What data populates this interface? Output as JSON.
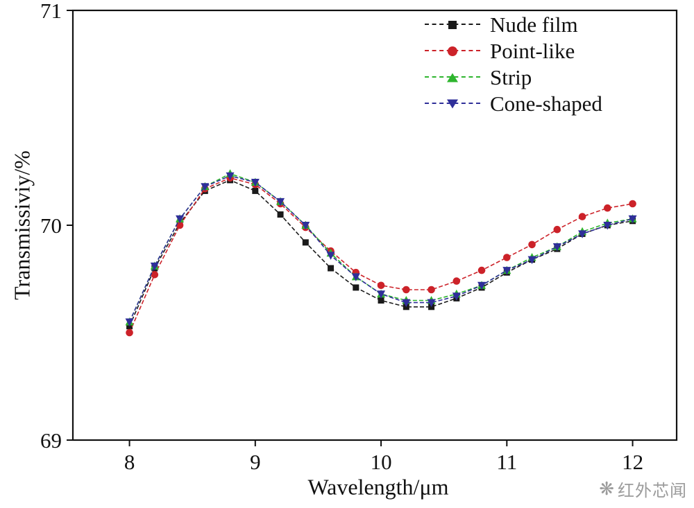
{
  "watermark": {
    "text": "红外芯闻",
    "icon": "snowflake-logo",
    "color": "#9b9b9b"
  },
  "chart_data": {
    "type": "line",
    "title": "",
    "xlabel": "Wavelength/μm",
    "ylabel": "Transmissiviy/%",
    "xlim": [
      7.55,
      12.35
    ],
    "ylim": [
      69,
      71
    ],
    "xticks": [
      8,
      9,
      10,
      11,
      12
    ],
    "yticks": [
      69,
      70,
      71
    ],
    "grid": false,
    "legend_position": "top-right-inside",
    "axis_color": "#111111",
    "x": [
      8.0,
      8.2,
      8.4,
      8.6,
      8.8,
      9.0,
      9.2,
      9.4,
      9.6,
      9.8,
      10.0,
      10.2,
      10.4,
      10.6,
      10.8,
      11.0,
      11.2,
      11.4,
      11.6,
      11.8,
      12.0
    ],
    "series": [
      {
        "name": "Nude film",
        "color": "#1a1a1a",
        "marker": "square",
        "values": [
          69.53,
          69.8,
          70.01,
          70.16,
          70.21,
          70.16,
          70.05,
          69.92,
          69.8,
          69.71,
          69.65,
          69.62,
          69.62,
          69.66,
          69.71,
          69.78,
          69.84,
          69.89,
          69.96,
          70.0,
          70.02
        ]
      },
      {
        "name": "Point-like",
        "color": "#cc2229",
        "marker": "circle",
        "values": [
          69.5,
          69.77,
          70.0,
          70.17,
          70.22,
          70.19,
          70.1,
          69.99,
          69.88,
          69.78,
          69.72,
          69.7,
          69.7,
          69.74,
          69.79,
          69.85,
          69.91,
          69.98,
          70.04,
          70.08,
          70.1
        ]
      },
      {
        "name": "Strip",
        "color": "#2eb52e",
        "marker": "triangle-up",
        "values": [
          69.55,
          69.81,
          70.03,
          70.18,
          70.24,
          70.2,
          70.11,
          70.0,
          69.87,
          69.76,
          69.68,
          69.65,
          69.65,
          69.68,
          69.72,
          69.79,
          69.85,
          69.9,
          69.97,
          70.01,
          70.03
        ]
      },
      {
        "name": "Cone-shaped",
        "color": "#2f2f99",
        "marker": "triangle-down",
        "values": [
          69.55,
          69.81,
          70.03,
          70.18,
          70.23,
          70.2,
          70.11,
          70.0,
          69.86,
          69.76,
          69.68,
          69.64,
          69.64,
          69.67,
          69.72,
          69.79,
          69.84,
          69.9,
          69.96,
          70.0,
          70.03
        ]
      }
    ]
  }
}
